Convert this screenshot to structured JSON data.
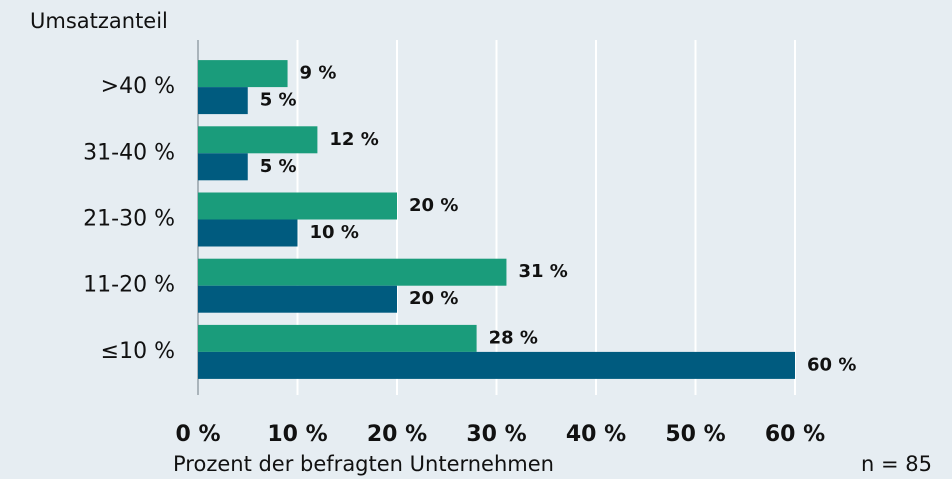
{
  "chart_data": {
    "type": "hbar",
    "ylabel": "Umsatzanteil",
    "xlabel": "Prozent der befragten Unternehmen",
    "annotation": "n = 85",
    "categories": [
      ">40 %",
      "31-40 %",
      "21-30 %",
      "11-20 %",
      "≤10 %"
    ],
    "series": [
      {
        "color": "#1a9c7b",
        "values": [
          9,
          12,
          20,
          31,
          28
        ],
        "value_labels": [
          "9 %",
          "12 %",
          "20 %",
          "31 %",
          "28 %"
        ]
      },
      {
        "color": "#005b7f",
        "values": [
          5,
          5,
          10,
          20,
          60
        ],
        "value_labels": [
          "5 %",
          "5 %",
          "10 %",
          "20 %",
          "60 %"
        ]
      }
    ],
    "xlim": [
      0,
      60
    ],
    "xticks": [
      {
        "value": 0,
        "label": "0 %"
      },
      {
        "value": 10,
        "label": "10 %"
      },
      {
        "value": 20,
        "label": "20 %"
      },
      {
        "value": 30,
        "label": "30 %"
      },
      {
        "value": 40,
        "label": "40 %"
      },
      {
        "value": 50,
        "label": "50 %"
      },
      {
        "value": 60,
        "label": "60 %"
      }
    ],
    "grid": true
  }
}
